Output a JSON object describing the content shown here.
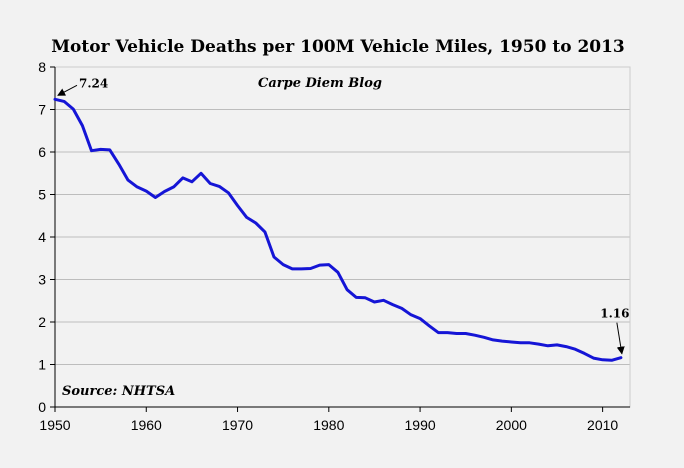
{
  "chart_data": {
    "type": "line",
    "title": "Motor Vehicle Deaths per 100M Vehicle Miles, 1950 to 2013",
    "xlabel": "",
    "ylabel": "",
    "xlim": [
      1950,
      2013
    ],
    "ylim": [
      0,
      8
    ],
    "grid": true,
    "x_ticks": [
      1950,
      1960,
      1970,
      1980,
      1990,
      2000,
      2010
    ],
    "y_ticks": [
      0,
      1,
      2,
      3,
      4,
      5,
      6,
      7,
      8
    ],
    "series": [
      {
        "name": "Deaths per 100M Vehicle Miles",
        "color": "#1515d6",
        "x": [
          1950,
          1951,
          1952,
          1953,
          1954,
          1955,
          1956,
          1957,
          1958,
          1959,
          1960,
          1961,
          1962,
          1963,
          1964,
          1965,
          1966,
          1967,
          1968,
          1969,
          1970,
          1971,
          1972,
          1973,
          1974,
          1975,
          1976,
          1977,
          1978,
          1979,
          1980,
          1981,
          1982,
          1983,
          1984,
          1985,
          1986,
          1987,
          1988,
          1989,
          1990,
          1991,
          1992,
          1993,
          1994,
          1995,
          1996,
          1997,
          1998,
          1999,
          2000,
          2001,
          2002,
          2003,
          2004,
          2005,
          2006,
          2007,
          2008,
          2009,
          2010,
          2011,
          2012
        ],
        "values": [
          7.24,
          7.19,
          7.01,
          6.62,
          6.03,
          6.06,
          6.05,
          5.71,
          5.34,
          5.18,
          5.08,
          4.93,
          5.07,
          5.18,
          5.39,
          5.3,
          5.5,
          5.26,
          5.19,
          5.04,
          4.74,
          4.46,
          4.33,
          4.12,
          3.53,
          3.35,
          3.25,
          3.25,
          3.26,
          3.34,
          3.35,
          3.17,
          2.76,
          2.58,
          2.57,
          2.47,
          2.51,
          2.41,
          2.32,
          2.17,
          2.08,
          1.91,
          1.75,
          1.75,
          1.73,
          1.73,
          1.69,
          1.64,
          1.58,
          1.55,
          1.53,
          1.51,
          1.51,
          1.48,
          1.44,
          1.46,
          1.42,
          1.36,
          1.26,
          1.15,
          1.11,
          1.1,
          1.16
        ]
      }
    ],
    "annotations": [
      {
        "text": "7.24",
        "x": 1950,
        "y": 7.24,
        "arrow": "down-left"
      },
      {
        "text": "1.16",
        "x": 2012,
        "y": 1.16,
        "arrow": "down"
      }
    ],
    "watermark": "Carpe Diem Blog",
    "source": "Source: NHTSA"
  }
}
